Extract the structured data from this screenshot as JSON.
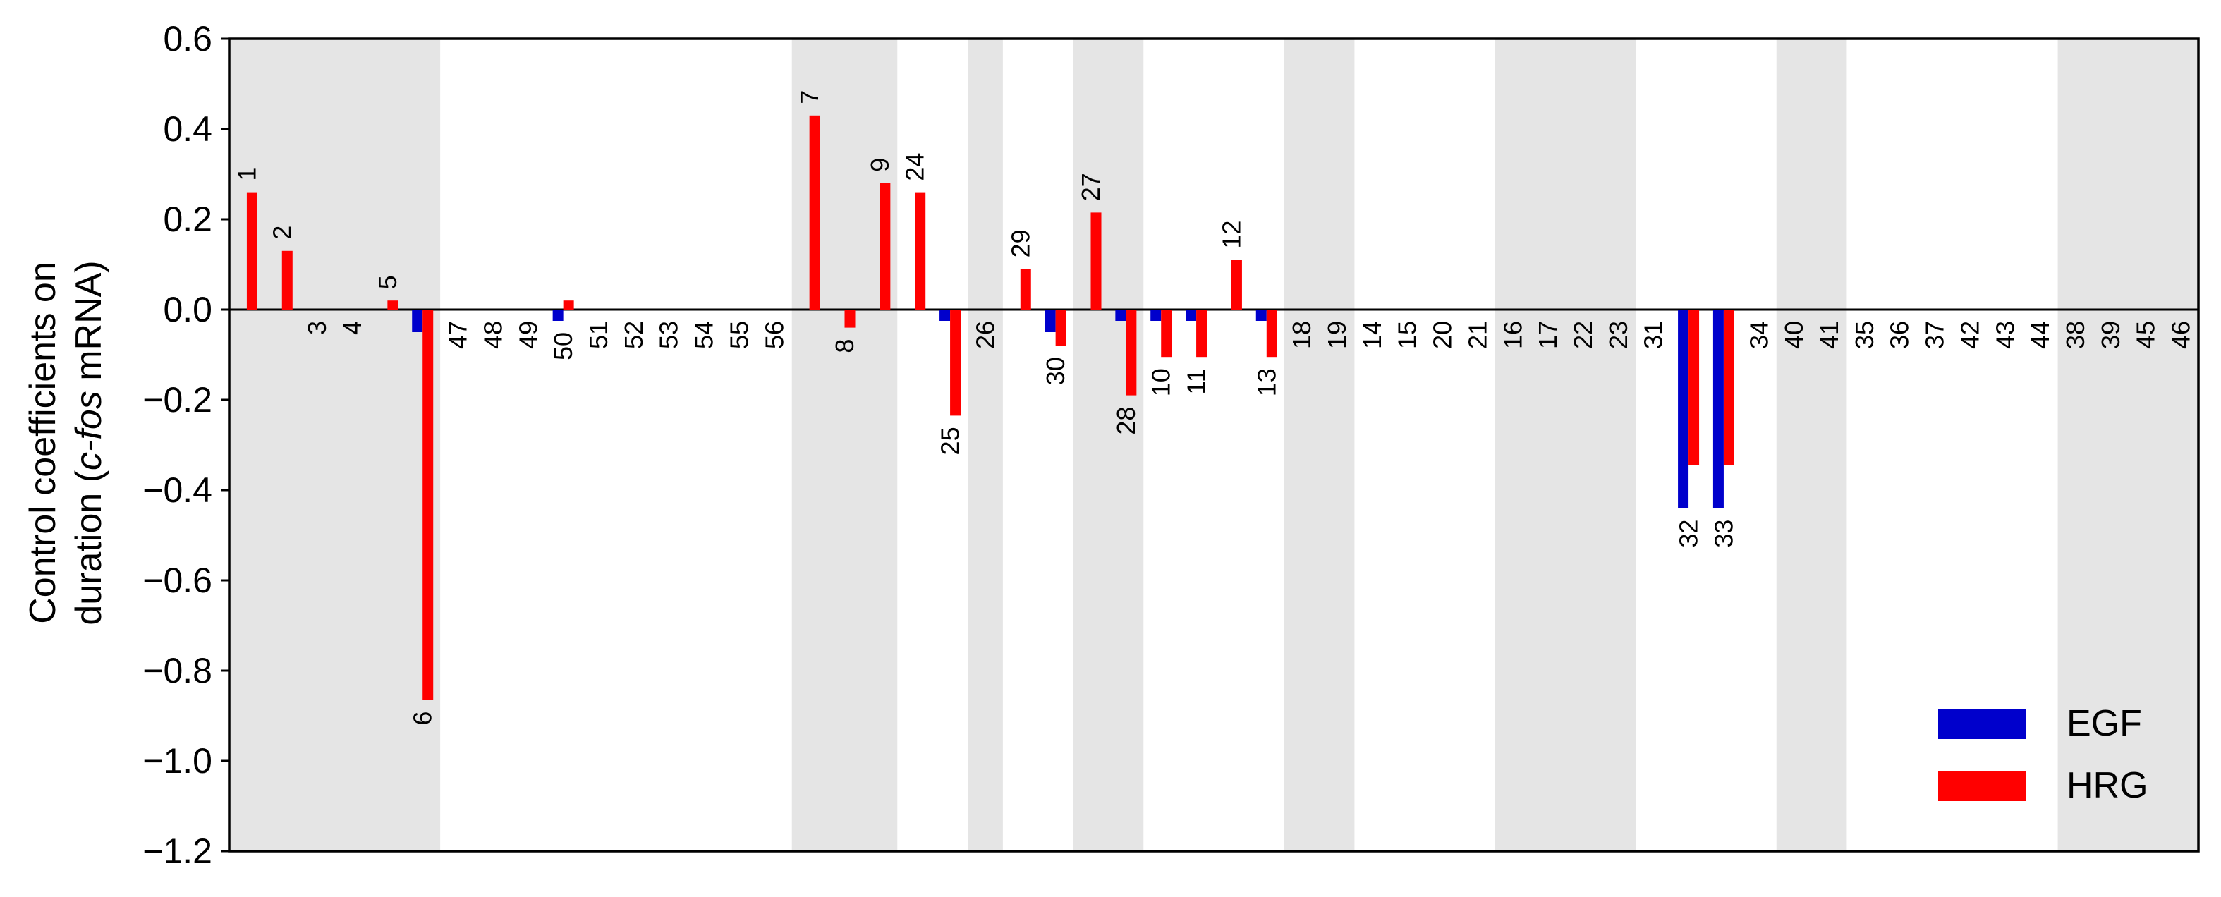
{
  "chart_data": {
    "type": "bar",
    "ylabel_line1": "Control coefficients on",
    "ylabel_line2_prefix": "duration (",
    "ylabel_line2_italic": "c-fos",
    "ylabel_line2_suffix": " mRNA)",
    "xlabel": "",
    "ylim": [
      -1.2,
      0.6
    ],
    "yticks": [
      "0.6",
      "0.4",
      "0.2",
      "0.0",
      "−0.2",
      "−0.4",
      "−0.6",
      "−0.8",
      "−1.0",
      "−1.2"
    ],
    "ytick_values": [
      0.6,
      0.4,
      0.2,
      0.0,
      -0.2,
      -0.4,
      -0.6,
      -0.8,
      -1.0,
      -1.2
    ],
    "grid": false,
    "legend_position": "bottom-right",
    "colors": {
      "EGF": "#0000cc",
      "HRG": "#ff0000",
      "shade": "#e5e5e5",
      "axis": "#000000"
    },
    "categories": [
      "1",
      "2",
      "3",
      "4",
      "5",
      "6",
      "47",
      "48",
      "49",
      "50",
      "51",
      "52",
      "53",
      "54",
      "55",
      "56",
      "7",
      "8",
      "9",
      "24",
      "25",
      "26",
      "29",
      "30",
      "27",
      "28",
      "10",
      "11",
      "12",
      "13",
      "18",
      "19",
      "14",
      "15",
      "20",
      "21",
      "16",
      "17",
      "22",
      "23",
      "31",
      "32",
      "33",
      "34",
      "40",
      "41",
      "35",
      "36",
      "37",
      "42",
      "43",
      "44",
      "38",
      "39",
      "45",
      "46"
    ],
    "series": [
      {
        "name": "EGF",
        "values": [
          0,
          0,
          0,
          0,
          0,
          -0.05,
          0,
          0,
          0,
          -0.025,
          0,
          0,
          0,
          0,
          0,
          0,
          0,
          0,
          0,
          0,
          -0.025,
          0,
          0,
          -0.05,
          0,
          -0.025,
          -0.025,
          -0.025,
          0,
          -0.025,
          0,
          0,
          0,
          0,
          0,
          0,
          0,
          0,
          0,
          0,
          0,
          -0.44,
          -0.44,
          0,
          0,
          0,
          0,
          0,
          0,
          0,
          0,
          0,
          0,
          0,
          0,
          0
        ]
      },
      {
        "name": "HRG",
        "values": [
          0.26,
          0.13,
          0,
          0,
          0.02,
          -0.865,
          0,
          0,
          0,
          0.02,
          0,
          0,
          0,
          0,
          0,
          0,
          0.43,
          -0.04,
          0.28,
          0.26,
          -0.235,
          0,
          0.09,
          -0.08,
          0.215,
          -0.19,
          -0.105,
          -0.105,
          0.11,
          -0.105,
          0,
          0,
          0,
          0,
          0,
          0,
          0,
          0,
          0,
          0,
          0,
          -0.345,
          -0.345,
          0,
          0,
          0,
          0,
          0,
          0,
          0,
          0,
          0,
          0,
          0,
          0,
          0
        ]
      }
    ],
    "label_side": [
      "above",
      "above",
      "below",
      "below",
      "above",
      "below",
      "below",
      "below",
      "below",
      "below",
      "below",
      "below",
      "below",
      "below",
      "below",
      "below",
      "above",
      "below",
      "above",
      "above",
      "below",
      "below",
      "above",
      "below",
      "above",
      "below",
      "below",
      "below",
      "above",
      "below",
      "below",
      "below",
      "below",
      "below",
      "below",
      "below",
      "below",
      "below",
      "below",
      "below",
      "below",
      "below",
      "below",
      "below",
      "below",
      "below",
      "below",
      "below",
      "below",
      "below",
      "below",
      "below",
      "below",
      "below",
      "below",
      "below"
    ],
    "shaded_groups": [
      [
        0,
        5
      ],
      [
        16,
        18
      ],
      [
        21,
        21
      ],
      [
        24,
        25
      ],
      [
        30,
        31
      ],
      [
        36,
        39
      ],
      [
        44,
        45
      ],
      [
        52,
        55
      ]
    ]
  }
}
